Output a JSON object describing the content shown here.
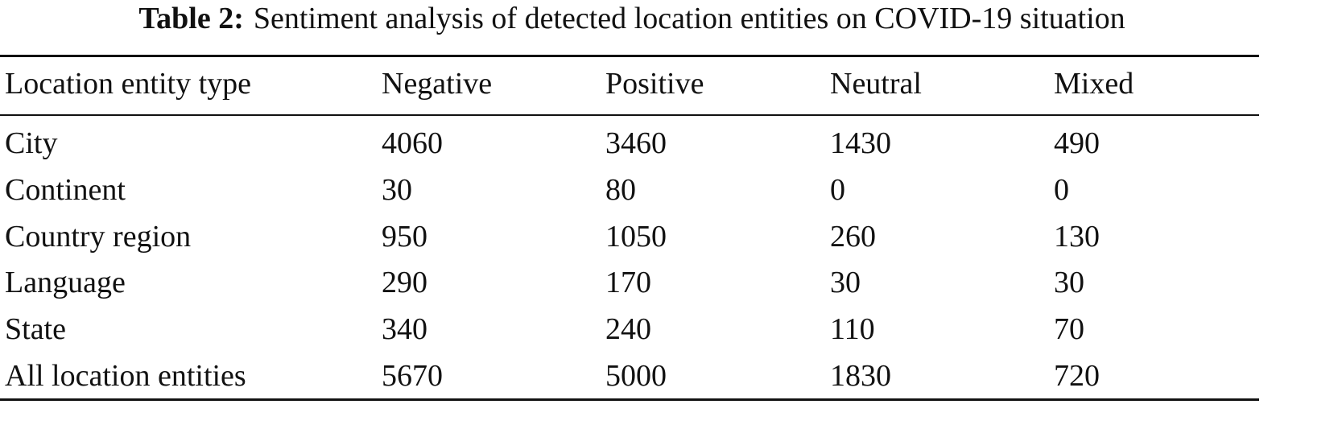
{
  "caption": {
    "label": "Table 2:",
    "text": "Sentiment analysis of detected location entities on COVID-19 situation"
  },
  "table": {
    "header": [
      "Location entity type",
      "Negative",
      "Positive",
      "Neutral",
      "Mixed"
    ],
    "rows": [
      [
        "City",
        4060,
        3460,
        1430,
        490
      ],
      [
        "Continent",
        30,
        80,
        0,
        0
      ],
      [
        "Country region",
        950,
        1050,
        260,
        130
      ],
      [
        "Language",
        290,
        170,
        30,
        30
      ],
      [
        "State",
        340,
        240,
        110,
        70
      ],
      [
        "All location entities",
        5670,
        5000,
        1830,
        720
      ]
    ]
  }
}
